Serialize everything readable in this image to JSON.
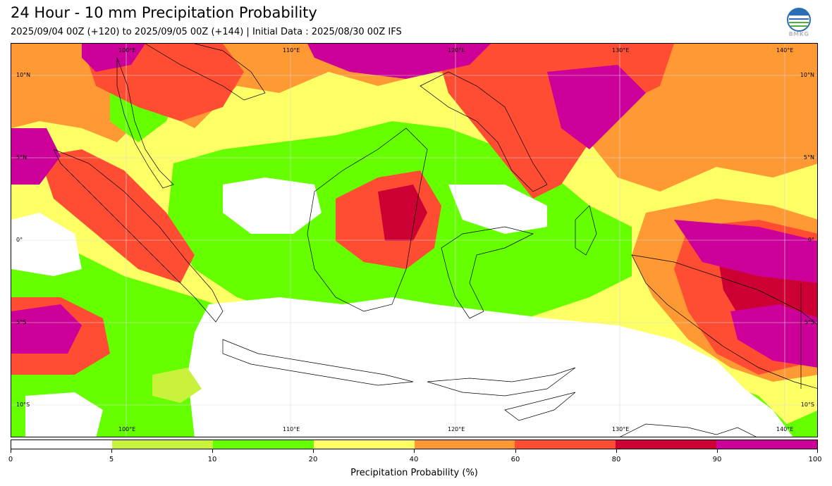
{
  "header": {
    "title": "24 Hour - 10 mm Precipitation Probability",
    "subtitle": "2025/09/04 00Z (+120) to 2025/09/05 00Z (+144) | Initial Data : 2025/08/30 00Z IFS",
    "logo_text": "BMKG"
  },
  "map": {
    "lon_labels": [
      "100°E",
      "110°E",
      "120°E",
      "130°E",
      "140°E"
    ],
    "lat_labels": [
      "10°N",
      "5°N",
      "0°",
      "5°S",
      "10°S"
    ],
    "palette": {
      "white": "#ffffff",
      "lime": "#c8f23c",
      "green": "#66ff00",
      "yellow": "#ffff66",
      "orange": "#ff9933",
      "red": "#ff4d33",
      "crimson": "#cc0033",
      "magenta": "#cc0099"
    }
  },
  "colorbar": {
    "ticks": [
      "0",
      "5",
      "10",
      "20",
      "40",
      "60",
      "80",
      "90",
      "100"
    ],
    "colors": [
      "#ffffff",
      "#c8f23c",
      "#66ff00",
      "#ffff66",
      "#ff9933",
      "#ff4d33",
      "#cc0033",
      "#cc0099"
    ],
    "label": "Precipitation Probability (%)"
  }
}
